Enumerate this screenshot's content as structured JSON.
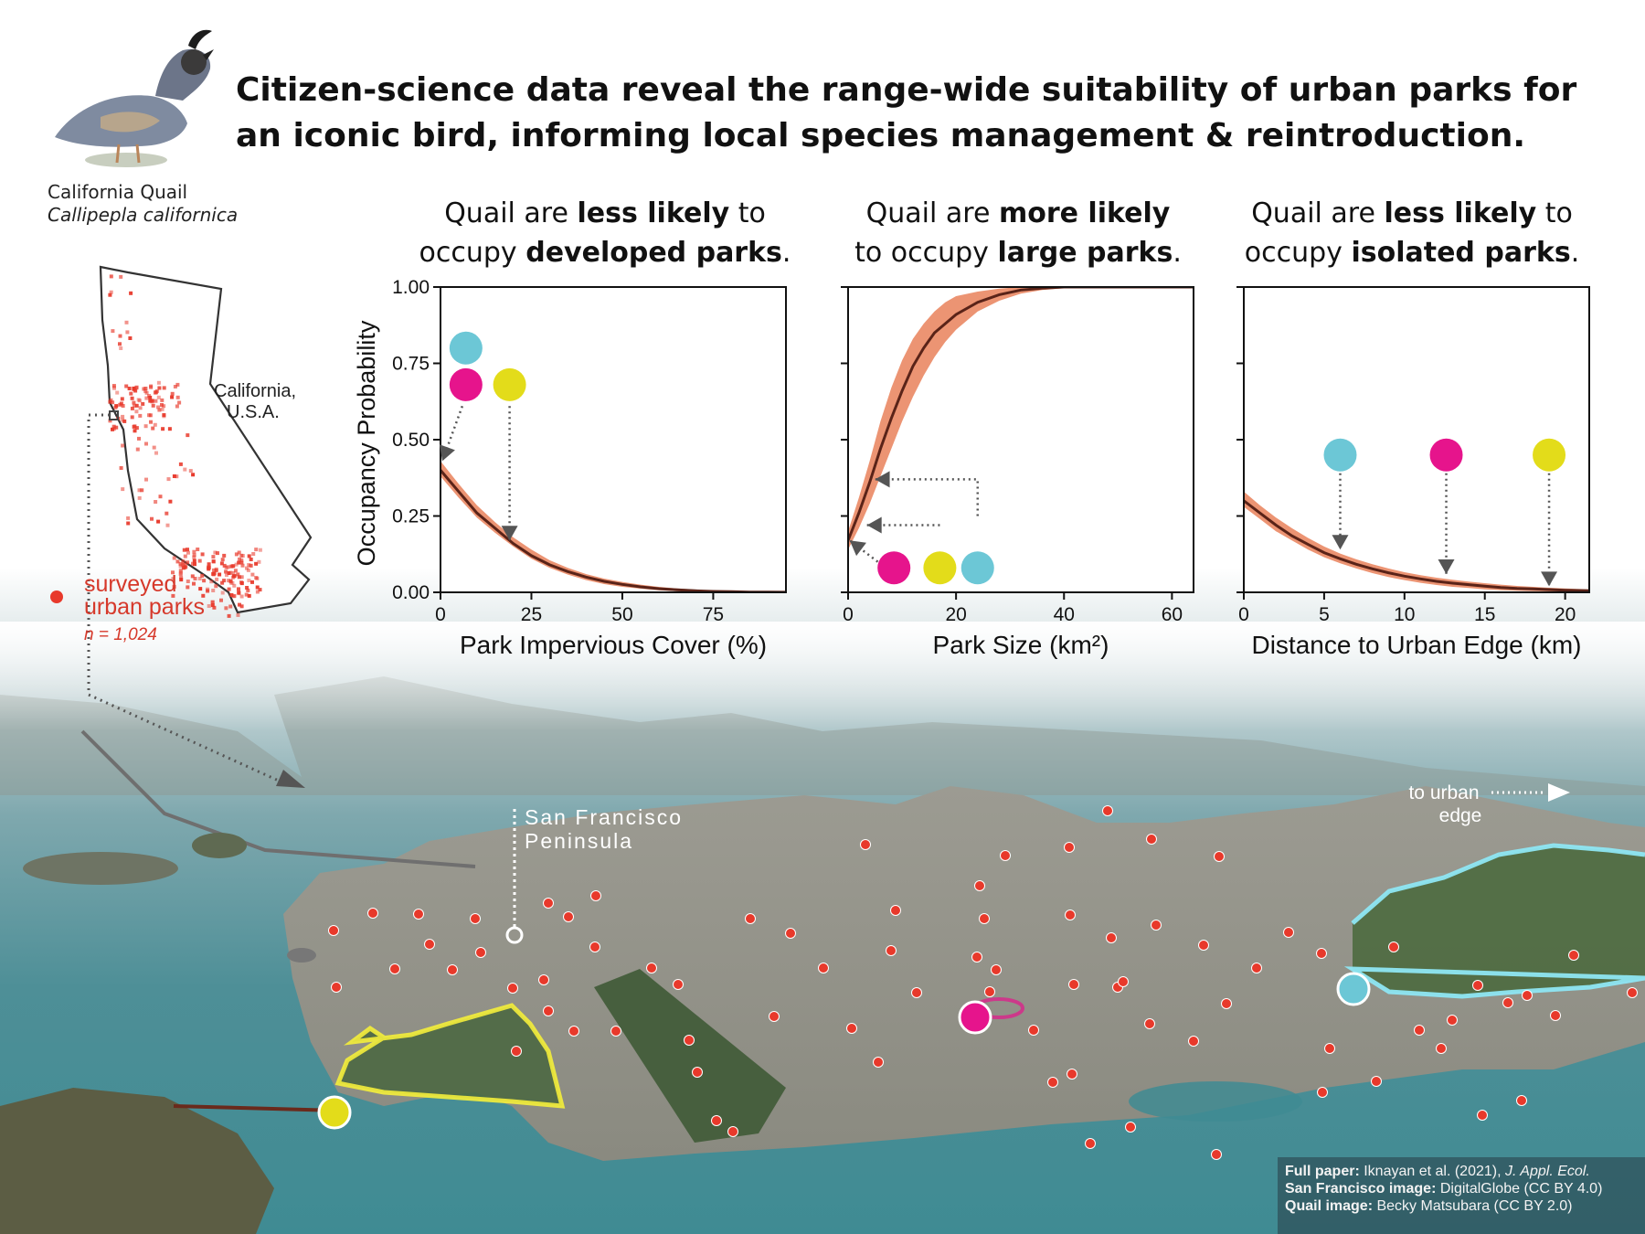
{
  "title": {
    "line1": "Citizen-science data reveal the range-wide suitability of urban parks for",
    "line2": "an iconic bird, informing local species management & reintroduction."
  },
  "quail": {
    "common_name": "California Quail",
    "scientific_name": "Callipepla californica"
  },
  "map": {
    "state_label_1": "California,",
    "state_label_2": "U.S.A.",
    "legend_line1": "surveyed",
    "legend_line2": "urban parks",
    "legend_n": "n = 1,024",
    "peninsula_line1": "San Francisco",
    "peninsula_line2": "Peninsula",
    "edge_line1": "to urban",
    "edge_line2": "edge"
  },
  "colors": {
    "cyan": "#6cc7d6",
    "magenta": "#e6148c",
    "yellow": "#e3dc1a",
    "ribbon": "#ec9473",
    "line": "#5a2318",
    "dots": "#e8392b"
  },
  "y_axis_label": "Occupancy Probability",
  "chart_data": [
    {
      "type": "line",
      "title_parts": [
        "Quail are ",
        "less likely",
        " to",
        "occupy ",
        "developed parks",
        "."
      ],
      "xlabel": "Park Impervious Cover (%)",
      "ylabel": "Occupancy Probability",
      "xlim": [
        0,
        95
      ],
      "ylim": [
        0,
        1
      ],
      "xticks": [
        "0",
        "25",
        "50",
        "75"
      ],
      "yticks": [
        "0.00",
        "0.25",
        "0.50",
        "0.75",
        "1.00"
      ],
      "xtick_values": [
        0,
        25,
        50,
        75
      ],
      "ytick_values": [
        0,
        0.25,
        0.5,
        0.75,
        1.0
      ],
      "series": [
        {
          "x": [
            0,
            5,
            10,
            15,
            20,
            25,
            30,
            35,
            40,
            45,
            50,
            55,
            60,
            65,
            70,
            75,
            80,
            85,
            90,
            95
          ],
          "y": [
            0.4,
            0.33,
            0.26,
            0.21,
            0.16,
            0.12,
            0.09,
            0.068,
            0.05,
            0.036,
            0.026,
            0.018,
            0.012,
            0.008,
            0.005,
            0.003,
            0.002,
            0.001,
            0.0006,
            0.0003
          ],
          "lower": [
            0.38,
            0.31,
            0.245,
            0.195,
            0.15,
            0.11,
            0.08,
            0.058,
            0.04,
            0.027,
            0.018,
            0.012,
            0.007,
            0.004,
            0.002,
            0.001,
            0.0005,
            0.0002,
            0.0001,
            0.0
          ],
          "upper": [
            0.43,
            0.355,
            0.285,
            0.23,
            0.18,
            0.14,
            0.105,
            0.08,
            0.06,
            0.045,
            0.034,
            0.025,
            0.018,
            0.013,
            0.009,
            0.006,
            0.004,
            0.003,
            0.002,
            0.001
          ]
        }
      ],
      "markers": [
        {
          "color": "cyan",
          "x": 7,
          "y": 0.8
        },
        {
          "color": "magenta",
          "x": 7,
          "y": 0.68
        },
        {
          "color": "yellow",
          "x": 19,
          "y": 0.68
        }
      ],
      "arrows": [
        {
          "from_x": 6,
          "from_y": 0.61,
          "to_x": 0.5,
          "to_y": 0.43
        },
        {
          "from_x": 19,
          "from_y": 0.61,
          "to_x": 19,
          "to_y": 0.17
        }
      ]
    },
    {
      "type": "line",
      "title_parts": [
        "Quail are ",
        "more likely",
        "",
        "to occupy ",
        "large parks",
        "."
      ],
      "xlabel": "Park Size (km²)",
      "ylabel": "",
      "xlim": [
        0,
        64
      ],
      "ylim": [
        0,
        1
      ],
      "xticks": [
        "0",
        "20",
        "40",
        "60"
      ],
      "yticks": [],
      "xtick_values": [
        0,
        20,
        40,
        60
      ],
      "ytick_values": [
        0,
        0.25,
        0.5,
        0.75,
        1.0
      ],
      "series": [
        {
          "x": [
            0,
            2,
            4,
            6,
            8,
            10,
            12,
            14,
            16,
            18,
            20,
            24,
            28,
            32,
            36,
            40,
            46,
            52,
            58,
            64
          ],
          "y": [
            0.17,
            0.26,
            0.36,
            0.47,
            0.57,
            0.66,
            0.74,
            0.8,
            0.85,
            0.88,
            0.91,
            0.95,
            0.975,
            0.99,
            0.996,
            1.0,
            1.0,
            1.0,
            1.0,
            1.0
          ],
          "lower": [
            0.14,
            0.21,
            0.29,
            0.38,
            0.47,
            0.56,
            0.64,
            0.71,
            0.77,
            0.82,
            0.86,
            0.92,
            0.955,
            0.978,
            0.99,
            0.996,
            1.0,
            1.0,
            1.0,
            1.0
          ],
          "upper": [
            0.2,
            0.31,
            0.43,
            0.56,
            0.67,
            0.76,
            0.83,
            0.88,
            0.92,
            0.95,
            0.97,
            0.985,
            0.995,
            1.0,
            1.0,
            1.0,
            1.0,
            1.0,
            1.0,
            1.0
          ]
        }
      ],
      "markers": [
        {
          "color": "magenta",
          "x": 8.5,
          "y": 0.08
        },
        {
          "color": "yellow",
          "x": 17,
          "y": 0.08
        },
        {
          "color": "cyan",
          "x": 24,
          "y": 0.08
        }
      ],
      "arrows": [
        {
          "from_x": 5.5,
          "from_y": 0.1,
          "to_x": 0.3,
          "to_y": 0.17
        },
        {
          "from_x": 17,
          "from_y": 0.22,
          "to_x": 3.5,
          "to_y": 0.22
        },
        {
          "from_x": 24,
          "from_y": 0.25,
          "to_x": 5,
          "to_y": 0.37
        }
      ]
    },
    {
      "type": "line",
      "title_parts": [
        "Quail are ",
        "less likely",
        " to",
        "occupy ",
        "isolated parks",
        "."
      ],
      "xlabel": "Distance to Urban Edge (km)",
      "ylabel": "",
      "xlim": [
        0,
        21.5
      ],
      "ylim": [
        0,
        1
      ],
      "xticks": [
        "0",
        "5",
        "10",
        "15",
        "20"
      ],
      "yticks": [],
      "xtick_values": [
        0,
        5,
        10,
        15,
        20
      ],
      "ytick_values": [
        0,
        0.25,
        0.5,
        0.75,
        1.0
      ],
      "series": [
        {
          "x": [
            0,
            1,
            2,
            3,
            4,
            5,
            6,
            7,
            8,
            9,
            10,
            11,
            12,
            13,
            14,
            15,
            16,
            17,
            18,
            19,
            20,
            21.5
          ],
          "y": [
            0.3,
            0.26,
            0.22,
            0.185,
            0.157,
            0.13,
            0.11,
            0.092,
            0.077,
            0.064,
            0.053,
            0.044,
            0.036,
            0.03,
            0.025,
            0.02,
            0.016,
            0.013,
            0.011,
            0.009,
            0.007,
            0.005
          ],
          "lower": [
            0.28,
            0.24,
            0.2,
            0.17,
            0.14,
            0.115,
            0.095,
            0.078,
            0.063,
            0.05,
            0.04,
            0.031,
            0.024,
            0.018,
            0.014,
            0.01,
            0.007,
            0.005,
            0.004,
            0.003,
            0.002,
            0.001
          ],
          "upper": [
            0.33,
            0.285,
            0.245,
            0.21,
            0.178,
            0.15,
            0.127,
            0.108,
            0.092,
            0.078,
            0.066,
            0.056,
            0.048,
            0.041,
            0.035,
            0.03,
            0.025,
            0.021,
            0.018,
            0.015,
            0.013,
            0.01
          ]
        }
      ],
      "markers": [
        {
          "color": "cyan",
          "x": 6,
          "y": 0.45
        },
        {
          "color": "magenta",
          "x": 12.6,
          "y": 0.45
        },
        {
          "color": "yellow",
          "x": 19,
          "y": 0.45
        }
      ],
      "arrows": [
        {
          "from_x": 6,
          "from_y": 0.39,
          "to_x": 6,
          "to_y": 0.14
        },
        {
          "from_x": 12.6,
          "from_y": 0.39,
          "to_x": 12.6,
          "to_y": 0.06
        },
        {
          "from_x": 19,
          "from_y": 0.39,
          "to_x": 19,
          "to_y": 0.02
        }
      ]
    }
  ],
  "credits": {
    "line1_label": "Full paper:",
    "line1_text": "Iknayan et al. (2021),",
    "line1_journal": "J. Appl. Ecol.",
    "line2_label": "San Francisco image:",
    "line2_text": "DigitalGlobe (CC BY 4.0)",
    "line3_label": "Quail image:",
    "line3_text": "Becky Matsubara (CC BY 2.0)"
  }
}
